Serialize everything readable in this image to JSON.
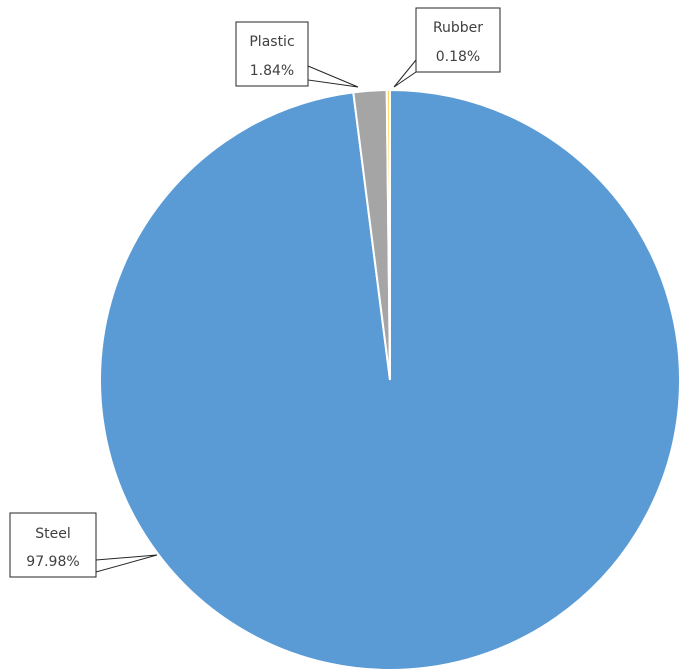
{
  "chart_data": {
    "type": "pie",
    "title": "",
    "categories": [
      "Steel",
      "Plastic",
      "Rubber"
    ],
    "values": [
      97.98,
      1.84,
      0.18
    ],
    "data_labels": [
      "97.98%",
      "1.84%",
      "0.18%"
    ],
    "colors": [
      "#5b9bd5",
      "#a5a5a5",
      "#ffd966"
    ],
    "legend": "none",
    "label_style": "callout"
  }
}
